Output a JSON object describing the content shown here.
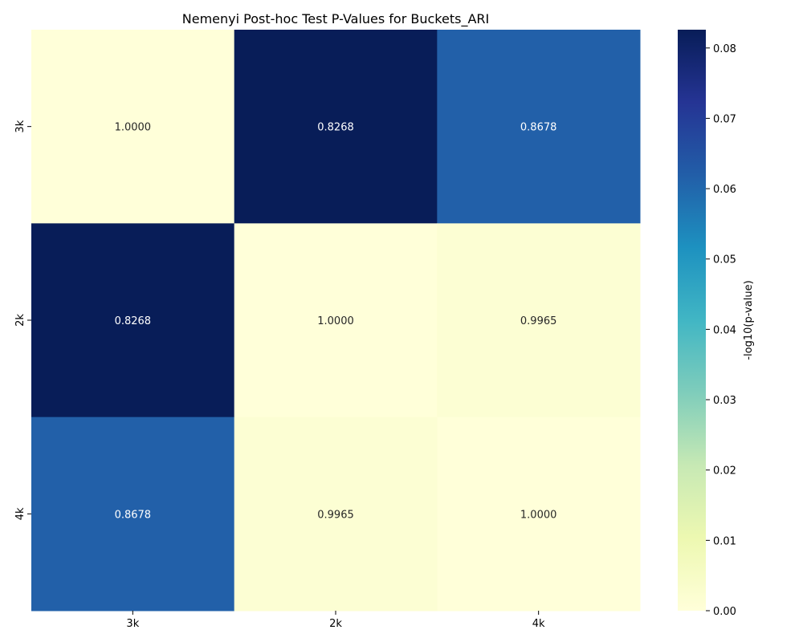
{
  "chart_data": {
    "type": "heatmap",
    "title": "Nemenyi Post-hoc Test P-Values for Buckets_ARI",
    "x_categories": [
      "3k",
      "2k",
      "4k"
    ],
    "y_categories": [
      "3k",
      "2k",
      "4k"
    ],
    "values": [
      [
        1.0,
        0.8268,
        0.8678
      ],
      [
        0.8268,
        1.0,
        0.9965
      ],
      [
        0.8678,
        0.9965,
        1.0
      ]
    ],
    "annotations": [
      [
        "1.0000",
        "0.8268",
        "0.8678"
      ],
      [
        "0.8268",
        "1.0000",
        "0.9965"
      ],
      [
        "0.8678",
        "0.9965",
        "1.0000"
      ]
    ],
    "colorbar": {
      "label": "-log10(p-value)",
      "range": [
        0,
        0.0826
      ],
      "ticks": [
        0.0,
        0.01,
        0.02,
        0.03,
        0.04,
        0.05,
        0.06,
        0.07,
        0.08
      ],
      "tick_labels": [
        "0.00",
        "0.01",
        "0.02",
        "0.03",
        "0.04",
        "0.05",
        "0.06",
        "0.07",
        "0.08"
      ],
      "colormap": "YlGnBu"
    },
    "grid": false
  }
}
